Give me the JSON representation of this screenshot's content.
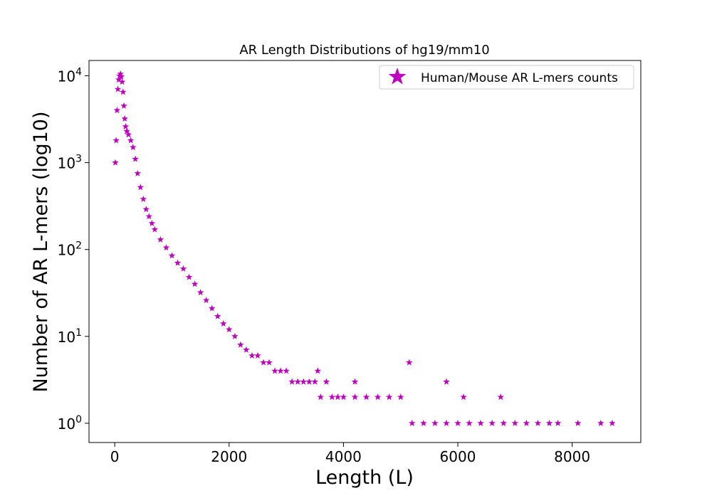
{
  "chart_data": {
    "type": "scatter",
    "title": "AR Length Distributions of hg19/mm10",
    "xlabel": "Length (L)",
    "ylabel": "Number of AR L-mers (log10)",
    "xlim": [
      -450,
      9200
    ],
    "ylim": [
      0.6,
      15000
    ],
    "yscale": "log",
    "x_ticks": [
      0,
      2000,
      4000,
      6000,
      8000
    ],
    "x_tick_labels": [
      "0",
      "2000",
      "4000",
      "6000",
      "8000"
    ],
    "y_ticks": [
      1,
      10,
      100,
      1000,
      10000
    ],
    "y_tick_labels": [
      {
        "base": "10",
        "exp": "0"
      },
      {
        "base": "10",
        "exp": "1"
      },
      {
        "base": "10",
        "exp": "2"
      },
      {
        "base": "10",
        "exp": "3"
      },
      {
        "base": "10",
        "exp": "4"
      }
    ],
    "grid": false,
    "legend_position": "upper right",
    "marker": "star",
    "color": "#bf00bf",
    "series": [
      {
        "name": "Human/Mouse AR L-mers counts",
        "x": [
          10,
          25,
          40,
          55,
          70,
          85,
          100,
          115,
          130,
          145,
          160,
          175,
          190,
          210,
          240,
          280,
          320,
          360,
          400,
          450,
          500,
          550,
          600,
          650,
          700,
          800,
          900,
          1000,
          1100,
          1200,
          1300,
          1400,
          1500,
          1600,
          1700,
          1800,
          1900,
          2000,
          2100,
          2200,
          2300,
          2400,
          2500,
          2600,
          2700,
          2800,
          2900,
          3000,
          3100,
          3200,
          3300,
          3400,
          3500,
          3600,
          3700,
          3800,
          3900,
          4000,
          4200,
          4400,
          4600,
          4800,
          5000,
          5200,
          5400,
          5600,
          5800,
          6000,
          6200,
          6400,
          6600,
          6800,
          7000,
          7200,
          7400,
          7600,
          7750,
          8100,
          8500,
          8700,
          5150,
          5800,
          6100,
          6750,
          3550,
          4200
        ],
        "y": [
          1000,
          1800,
          4000,
          7000,
          9000,
          10000,
          10500,
          9800,
          8500,
          6500,
          4500,
          3200,
          2600,
          2300,
          2100,
          1800,
          1500,
          1100,
          750,
          520,
          380,
          290,
          240,
          200,
          170,
          130,
          105,
          85,
          70,
          60,
          48,
          40,
          32,
          26,
          21,
          17,
          14,
          12,
          10,
          8,
          7,
          6,
          6,
          5,
          5,
          4,
          4,
          4,
          3,
          3,
          3,
          3,
          3,
          2,
          3,
          2,
          2,
          2,
          2,
          2,
          2,
          2,
          2,
          1,
          1,
          1,
          1,
          1,
          1,
          1,
          1,
          1,
          1,
          1,
          1,
          1,
          1,
          1,
          1,
          1,
          5,
          3,
          2,
          2,
          4,
          3
        ]
      }
    ]
  }
}
